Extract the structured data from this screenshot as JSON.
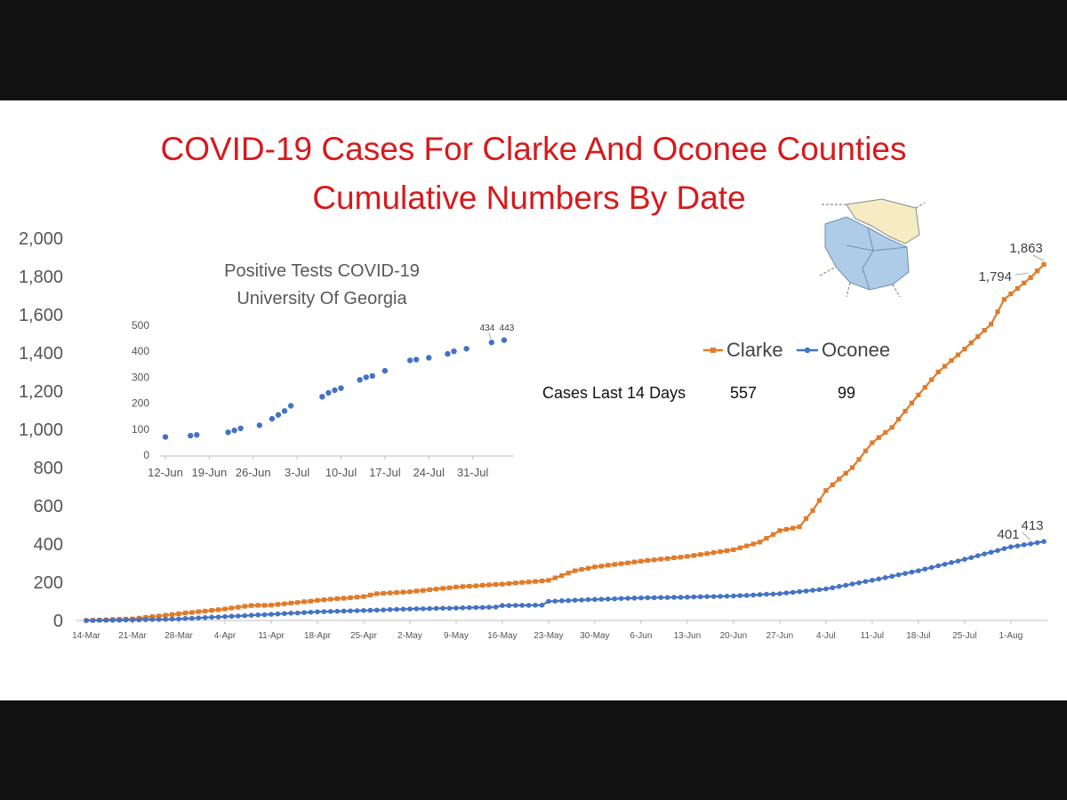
{
  "chart_data": [
    {
      "type": "line",
      "title": "COVID-19 Cases For Clarke And Oconee Counties",
      "subtitle": "Cumulative Numbers By Date",
      "x_tick_labels": [
        "14-Mar",
        "21-Mar",
        "28-Mar",
        "4-Apr",
        "11-Apr",
        "18-Apr",
        "25-Apr",
        "2-May",
        "9-May",
        "16-May",
        "23-May",
        "30-May",
        "6-Jun",
        "13-Jun",
        "20-Jun",
        "27-Jun",
        "4-Jul",
        "11-Jul",
        "18-Jul",
        "25-Jul",
        "1-Aug"
      ],
      "x_range": [
        "2020-03-14",
        "2020-08-06"
      ],
      "ylim": [
        0,
        2000
      ],
      "y_ticks": [
        0,
        200,
        400,
        600,
        800,
        1000,
        1200,
        1400,
        1600,
        1800,
        2000
      ],
      "y_tick_labels": [
        "0",
        "200",
        "400",
        "600",
        "800",
        "1,000",
        "1,200",
        "1,400",
        "1,600",
        "1,800",
        "2,000"
      ],
      "grid": false,
      "legend_position": "right",
      "series": [
        {
          "name": "Clarke",
          "color": "#e07b2a",
          "marker": "square",
          "points": [
            [
              "2020-03-14",
              0
            ],
            [
              "2020-03-21",
              8
            ],
            [
              "2020-03-28",
              35
            ],
            [
              "2020-04-04",
              60
            ],
            [
              "2020-04-08",
              78
            ],
            [
              "2020-04-11",
              80
            ],
            [
              "2020-04-18",
              105
            ],
            [
              "2020-04-25",
              125
            ],
            [
              "2020-04-27",
              140
            ],
            [
              "2020-05-02",
              150
            ],
            [
              "2020-05-09",
              175
            ],
            [
              "2020-05-16",
              190
            ],
            [
              "2020-05-23",
              210
            ],
            [
              "2020-05-27",
              260
            ],
            [
              "2020-05-30",
              280
            ],
            [
              "2020-06-06",
              310
            ],
            [
              "2020-06-13",
              335
            ],
            [
              "2020-06-20",
              370
            ],
            [
              "2020-06-24",
              410
            ],
            [
              "2020-06-27",
              470
            ],
            [
              "2020-06-30",
              490
            ],
            [
              "2020-07-02",
              575
            ],
            [
              "2020-07-04",
              680
            ],
            [
              "2020-07-08",
              800
            ],
            [
              "2020-07-11",
              930
            ],
            [
              "2020-07-14",
              1010
            ],
            [
              "2020-07-18",
              1180
            ],
            [
              "2020-07-21",
              1300
            ],
            [
              "2020-07-25",
              1420
            ],
            [
              "2020-07-29",
              1550
            ],
            [
              "2020-07-31",
              1680
            ],
            [
              "2020-08-04",
              1794
            ],
            [
              "2020-08-06",
              1863
            ]
          ]
        },
        {
          "name": "Oconee",
          "color": "#4472c4",
          "marker": "circle",
          "points": [
            [
              "2020-03-14",
              0
            ],
            [
              "2020-03-21",
              2
            ],
            [
              "2020-03-28",
              8
            ],
            [
              "2020-04-04",
              20
            ],
            [
              "2020-04-11",
              32
            ],
            [
              "2020-04-18",
              45
            ],
            [
              "2020-04-25",
              52
            ],
            [
              "2020-05-02",
              60
            ],
            [
              "2020-05-09",
              65
            ],
            [
              "2020-05-15",
              70
            ],
            [
              "2020-05-16",
              78
            ],
            [
              "2020-05-22",
              80
            ],
            [
              "2020-05-23",
              100
            ],
            [
              "2020-05-30",
              110
            ],
            [
              "2020-06-06",
              118
            ],
            [
              "2020-06-13",
              122
            ],
            [
              "2020-06-20",
              128
            ],
            [
              "2020-06-27",
              140
            ],
            [
              "2020-07-04",
              165
            ],
            [
              "2020-07-11",
              210
            ],
            [
              "2020-07-18",
              260
            ],
            [
              "2020-07-25",
              320
            ],
            [
              "2020-08-01",
              385
            ],
            [
              "2020-08-04",
              401
            ],
            [
              "2020-08-06",
              413
            ]
          ]
        }
      ],
      "annotations": [
        {
          "series": "Clarke",
          "date": "2020-08-04",
          "value": 1794,
          "label": "1,794"
        },
        {
          "series": "Clarke",
          "date": "2020-08-06",
          "value": 1863,
          "label": "1,863"
        },
        {
          "series": "Oconee",
          "date": "2020-08-04",
          "value": 401,
          "label": "401"
        },
        {
          "series": "Oconee",
          "date": "2020-08-06",
          "value": 413,
          "label": "413"
        }
      ]
    },
    {
      "type": "scatter",
      "title": "Positive Tests COVID-19",
      "subtitle": "University Of Georgia",
      "x_tick_labels": [
        "12-Jun",
        "19-Jun",
        "26-Jun",
        "3-Jul",
        "10-Jul",
        "17-Jul",
        "24-Jul",
        "31-Jul"
      ],
      "x_range": [
        "2020-06-12",
        "2020-08-06"
      ],
      "ylim": [
        0,
        500
      ],
      "y_ticks": [
        0,
        100,
        200,
        300,
        400,
        500
      ],
      "series": [
        {
          "color": "#4472c4",
          "points": [
            [
              "2020-06-12",
              70
            ],
            [
              "2020-06-16",
              75
            ],
            [
              "2020-06-17",
              78
            ],
            [
              "2020-06-22",
              88
            ],
            [
              "2020-06-23",
              95
            ],
            [
              "2020-06-24",
              103
            ],
            [
              "2020-06-27",
              115
            ],
            [
              "2020-06-29",
              140
            ],
            [
              "2020-06-30",
              155
            ],
            [
              "2020-07-01",
              170
            ],
            [
              "2020-07-02",
              190
            ],
            [
              "2020-07-07",
              225
            ],
            [
              "2020-07-08",
              240
            ],
            [
              "2020-07-09",
              250
            ],
            [
              "2020-07-10",
              258
            ],
            [
              "2020-07-13",
              290
            ],
            [
              "2020-07-14",
              300
            ],
            [
              "2020-07-15",
              305
            ],
            [
              "2020-07-17",
              325
            ],
            [
              "2020-07-21",
              365
            ],
            [
              "2020-07-22",
              368
            ],
            [
              "2020-07-24",
              375
            ],
            [
              "2020-07-27",
              390
            ],
            [
              "2020-07-28",
              400
            ],
            [
              "2020-07-30",
              410
            ],
            [
              "2020-08-03",
              434
            ],
            [
              "2020-08-05",
              443
            ]
          ]
        }
      ],
      "annotations": [
        {
          "date": "2020-08-03",
          "value": 434,
          "label": "434"
        },
        {
          "date": "2020-08-05",
          "value": 443,
          "label": "443"
        }
      ]
    }
  ],
  "legend": {
    "clarke": "Clarke",
    "oconee": "Oconee"
  },
  "summary": {
    "label": "Cases Last 14 Days",
    "clarke": "557",
    "oconee": "99"
  }
}
